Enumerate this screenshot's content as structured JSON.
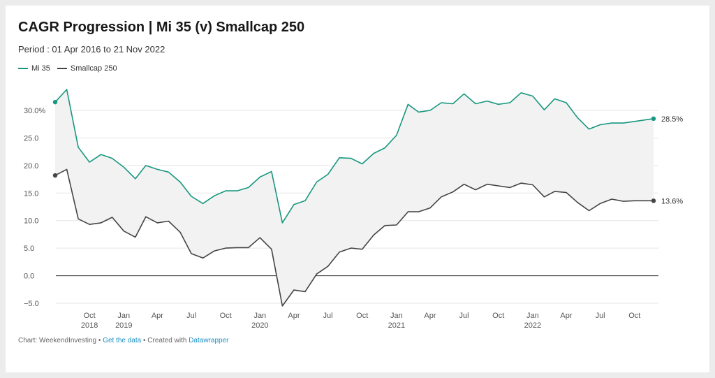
{
  "chart_data": {
    "type": "line",
    "title": "CAGR Progression  |  Mi 35 (v) Smallcap 250",
    "subtitle": "Period : 01 Apr 2016 to 21 Nov 2022",
    "ylim": [
      -5,
      30
    ],
    "yticks": [
      {
        "value": 30,
        "label": "30.0%"
      },
      {
        "value": 25,
        "label": "25.0"
      },
      {
        "value": 20,
        "label": "20.0"
      },
      {
        "value": 15,
        "label": "15.0"
      },
      {
        "value": 10,
        "label": "10.0"
      },
      {
        "value": 5,
        "label": "5.0"
      },
      {
        "value": 0,
        "label": "0.0"
      },
      {
        "value": -5,
        "label": "−5.0"
      }
    ],
    "xticks": [
      {
        "date": "2018-10-01",
        "label": "Oct",
        "year": "2018"
      },
      {
        "date": "2019-01-01",
        "label": "Jan",
        "year": "2019"
      },
      {
        "date": "2019-04-01",
        "label": "Apr",
        "year": ""
      },
      {
        "date": "2019-07-01",
        "label": "Jul",
        "year": ""
      },
      {
        "date": "2019-10-01",
        "label": "Oct",
        "year": ""
      },
      {
        "date": "2020-01-01",
        "label": "Jan",
        "year": "2020"
      },
      {
        "date": "2020-04-01",
        "label": "Apr",
        "year": ""
      },
      {
        "date": "2020-07-01",
        "label": "Jul",
        "year": ""
      },
      {
        "date": "2020-10-01",
        "label": "Oct",
        "year": ""
      },
      {
        "date": "2021-01-01",
        "label": "Jan",
        "year": "2021"
      },
      {
        "date": "2021-04-01",
        "label": "Apr",
        "year": ""
      },
      {
        "date": "2021-07-01",
        "label": "Jul",
        "year": ""
      },
      {
        "date": "2021-10-01",
        "label": "Oct",
        "year": ""
      },
      {
        "date": "2022-01-01",
        "label": "Jan",
        "year": "2022"
      },
      {
        "date": "2022-04-01",
        "label": "Apr",
        "year": ""
      },
      {
        "date": "2022-07-01",
        "label": "Jul",
        "year": ""
      },
      {
        "date": "2022-10-01",
        "label": "Oct",
        "year": ""
      }
    ],
    "x": [
      "2018-07-01",
      "2018-08-01",
      "2018-09-01",
      "2018-10-01",
      "2018-11-01",
      "2018-12-01",
      "2019-01-01",
      "2019-02-01",
      "2019-03-01",
      "2019-04-01",
      "2019-05-01",
      "2019-06-01",
      "2019-07-01",
      "2019-08-01",
      "2019-09-01",
      "2019-10-01",
      "2019-11-01",
      "2019-12-01",
      "2020-01-01",
      "2020-02-01",
      "2020-03-01",
      "2020-04-01",
      "2020-05-01",
      "2020-06-01",
      "2020-07-01",
      "2020-08-01",
      "2020-09-01",
      "2020-10-01",
      "2020-11-01",
      "2020-12-01",
      "2021-01-01",
      "2021-02-01",
      "2021-03-01",
      "2021-04-01",
      "2021-05-01",
      "2021-06-01",
      "2021-07-01",
      "2021-08-01",
      "2021-09-01",
      "2021-10-01",
      "2021-11-01",
      "2021-12-01",
      "2022-01-01",
      "2022-02-01",
      "2022-03-01",
      "2022-04-01",
      "2022-05-01",
      "2022-06-01",
      "2022-07-01",
      "2022-08-01",
      "2022-09-01",
      "2022-10-01",
      "2022-11-21"
    ],
    "series": [
      {
        "name": "Mi 35",
        "color": "#17977f",
        "end_label": "28.5%",
        "values": [
          31.5,
          33.8,
          23.3,
          20.6,
          22.0,
          21.3,
          19.7,
          17.6,
          20.0,
          19.3,
          18.8,
          17.0,
          14.4,
          13.1,
          14.5,
          15.4,
          15.4,
          16.0,
          17.9,
          18.9,
          9.6,
          12.9,
          13.6,
          17.0,
          18.4,
          21.4,
          21.3,
          20.3,
          22.2,
          23.2,
          25.5,
          31.1,
          29.7,
          30.0,
          31.4,
          31.2,
          33.0,
          31.2,
          31.7,
          31.1,
          31.4,
          33.2,
          32.6,
          30.1,
          32.1,
          31.4,
          28.7,
          26.6,
          27.4,
          27.7,
          27.7,
          28.0,
          28.5
        ]
      },
      {
        "name": "Smallcap 250",
        "color": "#444444",
        "end_label": "13.6%",
        "values": [
          18.2,
          19.3,
          10.3,
          9.3,
          9.6,
          10.6,
          8.1,
          7.0,
          10.7,
          9.6,
          9.9,
          7.9,
          4.0,
          3.2,
          4.5,
          5.0,
          5.1,
          5.1,
          6.9,
          4.8,
          -5.5,
          -2.6,
          -2.9,
          0.3,
          1.7,
          4.3,
          5.0,
          4.8,
          7.4,
          9.1,
          9.2,
          11.6,
          11.6,
          12.3,
          14.3,
          15.2,
          16.6,
          15.6,
          16.6,
          16.3,
          16.0,
          16.8,
          16.5,
          14.3,
          15.3,
          15.1,
          13.3,
          11.8,
          13.1,
          13.9,
          13.5,
          13.6,
          13.6
        ]
      }
    ],
    "grid": true,
    "legend": "top-left"
  },
  "footer": {
    "source_prefix": "Chart: WeekendInvesting",
    "sep1": " • ",
    "data_link": "Get the data",
    "sep2": " • Created with ",
    "tool_link": "Datawrapper"
  }
}
